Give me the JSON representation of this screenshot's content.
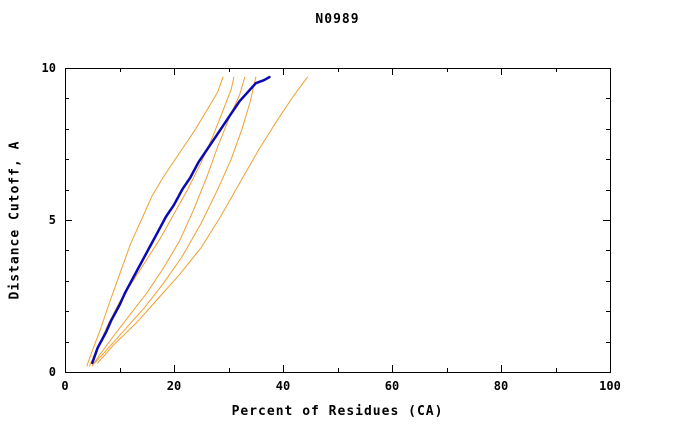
{
  "page": {
    "title": "N0989"
  },
  "chart_data": {
    "type": "line",
    "title": "N0989",
    "xlabel": "Percent of Residues (CA)",
    "ylabel": "Distance Cutoff, A",
    "xlim": [
      0,
      100
    ],
    "ylim": [
      0,
      10
    ],
    "x_major_ticks": [
      0,
      20,
      40,
      60,
      80,
      100
    ],
    "x_minor_ticks": [
      10,
      30,
      50,
      70,
      90
    ],
    "y_major_ticks": [
      0,
      5,
      10
    ],
    "y_minor_ticks": [
      1,
      2,
      3,
      4,
      6,
      7,
      8,
      9
    ],
    "grid": false,
    "legend": "none",
    "axis_color": "#000000",
    "colors": {
      "model": "#0a0ab4",
      "reference": "#f0a030"
    },
    "series": [
      {
        "name": "reference-1",
        "color": "#f0a030",
        "width": 1,
        "points": [
          [
            4,
            0.2
          ],
          [
            5,
            0.7
          ],
          [
            6.5,
            1.4
          ],
          [
            8,
            2.2
          ],
          [
            10,
            3.2
          ],
          [
            12,
            4.2
          ],
          [
            14,
            5.0
          ],
          [
            16,
            5.8
          ],
          [
            18,
            6.4
          ],
          [
            21,
            7.2
          ],
          [
            24,
            8.0
          ],
          [
            26,
            8.6
          ],
          [
            28,
            9.2
          ],
          [
            29,
            9.7
          ]
        ]
      },
      {
        "name": "reference-2",
        "color": "#f0a030",
        "width": 1,
        "points": [
          [
            4.5,
            0.2
          ],
          [
            6,
            0.8
          ],
          [
            8,
            1.6
          ],
          [
            10,
            2.3
          ],
          [
            12.5,
            3.0
          ],
          [
            15,
            3.7
          ],
          [
            17.5,
            4.4
          ],
          [
            20,
            5.2
          ],
          [
            22.5,
            6.0
          ],
          [
            25,
            6.9
          ],
          [
            27,
            7.7
          ],
          [
            29,
            8.6
          ],
          [
            30.5,
            9.3
          ],
          [
            31,
            9.7
          ]
        ]
      },
      {
        "name": "reference-3",
        "color": "#f0a030",
        "width": 1,
        "points": [
          [
            5,
            0.2
          ],
          [
            6.5,
            0.6
          ],
          [
            9,
            1.2
          ],
          [
            12,
            1.9
          ],
          [
            15,
            2.6
          ],
          [
            18,
            3.4
          ],
          [
            21,
            4.3
          ],
          [
            23.5,
            5.3
          ],
          [
            26,
            6.4
          ],
          [
            28,
            7.4
          ],
          [
            30,
            8.3
          ],
          [
            32,
            9.1
          ],
          [
            33,
            9.7
          ]
        ]
      },
      {
        "name": "reference-4",
        "color": "#f0a030",
        "width": 1,
        "points": [
          [
            5.5,
            0.3
          ],
          [
            8,
            0.8
          ],
          [
            11,
            1.4
          ],
          [
            14.5,
            2.1
          ],
          [
            18,
            2.9
          ],
          [
            21.5,
            3.8
          ],
          [
            25,
            4.9
          ],
          [
            28,
            6.0
          ],
          [
            30.5,
            7.0
          ],
          [
            32.5,
            8.0
          ],
          [
            34,
            8.9
          ],
          [
            35,
            9.7
          ]
        ]
      },
      {
        "name": "reference-5",
        "color": "#f0a030",
        "width": 1,
        "points": [
          [
            6,
            0.3
          ],
          [
            9,
            0.9
          ],
          [
            13,
            1.6
          ],
          [
            17,
            2.4
          ],
          [
            21,
            3.2
          ],
          [
            25,
            4.1
          ],
          [
            28.5,
            5.1
          ],
          [
            32,
            6.2
          ],
          [
            35.5,
            7.3
          ],
          [
            39,
            8.3
          ],
          [
            42,
            9.1
          ],
          [
            44.5,
            9.7
          ]
        ]
      },
      {
        "name": "model-N0989",
        "color": "#0a0ab4",
        "width": 2.5,
        "points": [
          [
            5,
            0.3
          ],
          [
            6,
            0.8
          ],
          [
            7.5,
            1.3
          ],
          [
            8.5,
            1.7
          ],
          [
            10,
            2.2
          ],
          [
            11,
            2.6
          ],
          [
            12.5,
            3.1
          ],
          [
            14,
            3.6
          ],
          [
            15.5,
            4.1
          ],
          [
            17,
            4.6
          ],
          [
            18.5,
            5.1
          ],
          [
            20,
            5.5
          ],
          [
            21.5,
            6.0
          ],
          [
            23,
            6.4
          ],
          [
            24.5,
            6.9
          ],
          [
            26,
            7.3
          ],
          [
            27.5,
            7.7
          ],
          [
            29,
            8.1
          ],
          [
            30.5,
            8.5
          ],
          [
            32,
            8.9
          ],
          [
            33.5,
            9.2
          ],
          [
            35,
            9.5
          ],
          [
            36.5,
            9.6
          ],
          [
            37.5,
            9.7
          ]
        ]
      }
    ]
  }
}
